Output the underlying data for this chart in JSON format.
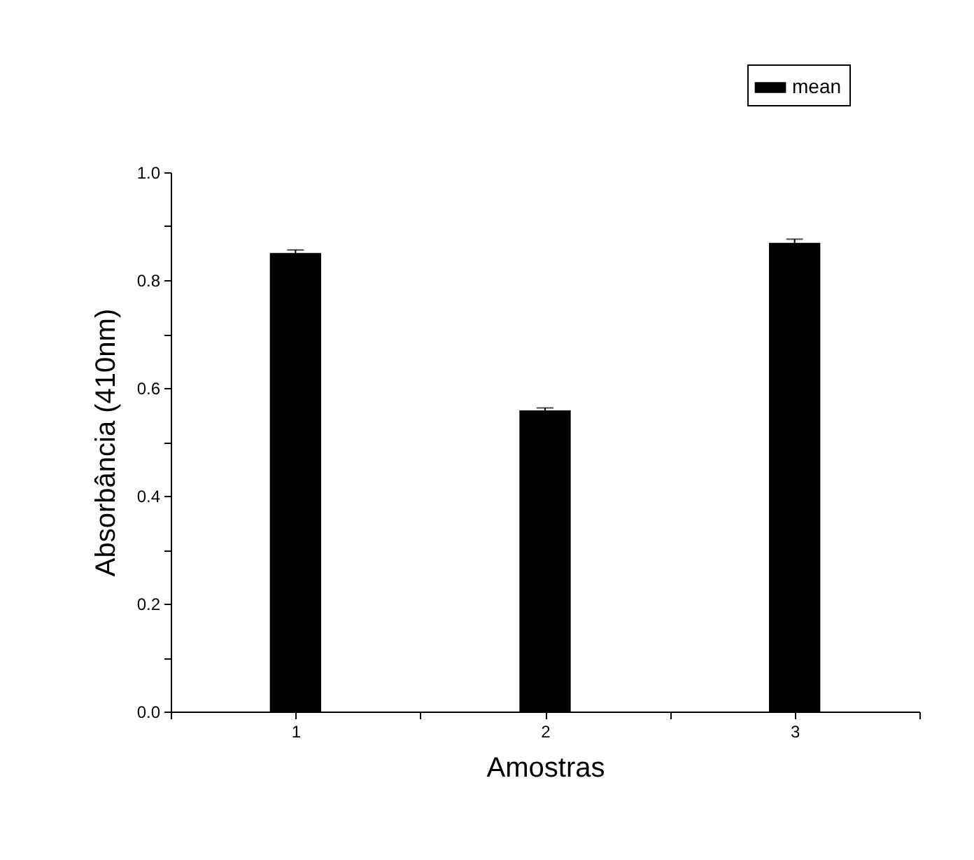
{
  "chart_data": {
    "type": "bar",
    "xlabel": "Amostras",
    "ylabel": "Absorbância (410nm)",
    "x": [
      1,
      2,
      3
    ],
    "series": [
      {
        "name": "mean",
        "color": "#000000",
        "values": [
          0.849,
          0.557,
          0.868
        ],
        "errors": [
          0.007,
          0.006,
          0.008
        ]
      }
    ],
    "xlim": [
      0.5,
      3.5
    ],
    "xticks": [
      {
        "value": 0.5,
        "label": null
      },
      1,
      {
        "value": 1.5,
        "label": null
      },
      2,
      {
        "value": 2.5,
        "label": null
      },
      3,
      {
        "value": 3.5,
        "label": null
      }
    ],
    "ylim": [
      0,
      1.0
    ],
    "yticks": [
      {
        "value": 0,
        "label": "0.0"
      },
      {
        "value": 0.1,
        "label": null
      },
      {
        "value": 0.2,
        "label": "0.2"
      },
      {
        "value": 0.3,
        "label": null
      },
      {
        "value": 0.4,
        "label": "0.4"
      },
      {
        "value": 0.5,
        "label": null
      },
      {
        "value": 0.6,
        "label": "0.6"
      },
      {
        "value": 0.7,
        "label": null
      },
      {
        "value": 0.8,
        "label": "0.8"
      },
      {
        "value": 0.9,
        "label": null
      },
      {
        "value": 1.0,
        "label": "1.0"
      }
    ],
    "legend": "top right"
  }
}
